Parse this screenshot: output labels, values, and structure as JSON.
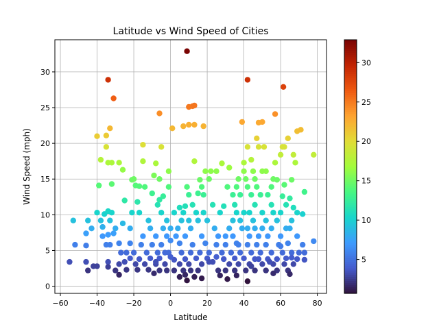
{
  "chart_data": {
    "type": "scatter",
    "title": "Latitude vs Wind Speed of Cities",
    "xlabel": "Latitude",
    "ylabel": "Wind Speed (mph)",
    "xlim": [
      -63,
      85
    ],
    "ylim": [
      -1.0,
      34.5
    ],
    "xticks": [
      -60,
      -40,
      -20,
      0,
      20,
      40,
      60,
      80
    ],
    "yticks": [
      0,
      5,
      10,
      15,
      20,
      25,
      30
    ],
    "grid": true,
    "colormap": "turbo",
    "color_value": "wind speed (mph)",
    "colorbar": {
      "min": 0.7,
      "max": 32.9,
      "ticks": [
        5,
        10,
        15,
        20,
        25,
        30
      ]
    },
    "points": [
      [
        9.0,
        32.9
      ],
      [
        -34.0,
        28.9
      ],
      [
        42.0,
        28.9
      ],
      [
        61.5,
        27.9
      ],
      [
        -31.0,
        26.3
      ],
      [
        10.0,
        25.1
      ],
      [
        12.0,
        25.2
      ],
      [
        13.0,
        25.3
      ],
      [
        -6.0,
        24.2
      ],
      [
        57.0,
        24.1
      ],
      [
        7.0,
        22.4
      ],
      [
        10.0,
        22.6
      ],
      [
        13.0,
        22.6
      ],
      [
        18.0,
        22.4
      ],
      [
        39.0,
        23.0
      ],
      [
        48.0,
        22.9
      ],
      [
        50.0,
        23.0
      ],
      [
        -33.0,
        22.1
      ],
      [
        -40.0,
        21.0
      ],
      [
        -35.0,
        21.1
      ],
      [
        64.0,
        20.7
      ],
      [
        69.0,
        21.7
      ],
      [
        71.0,
        21.9
      ],
      [
        47.0,
        20.7
      ],
      [
        -35.0,
        19.5
      ],
      [
        -15.0,
        19.8
      ],
      [
        -5.0,
        19.5
      ],
      [
        1.0,
        22.1
      ],
      [
        42.0,
        19.5
      ],
      [
        48.0,
        19.5
      ],
      [
        51.0,
        19.5
      ],
      [
        61.0,
        19.5
      ],
      [
        62.0,
        19.5
      ],
      [
        60.0,
        18.4
      ],
      [
        67.0,
        18.4
      ],
      [
        78.0,
        18.4
      ],
      [
        -38.0,
        17.7
      ],
      [
        -34.0,
        17.3
      ],
      [
        -28.0,
        17.3
      ],
      [
        -15.0,
        17.5
      ],
      [
        -8.0,
        17.2
      ],
      [
        13.0,
        17.5
      ],
      [
        28.0,
        17.2
      ],
      [
        32.0,
        16.6
      ],
      [
        40.0,
        17.3
      ],
      [
        44.0,
        17.7
      ],
      [
        57.0,
        17.3
      ],
      [
        68.0,
        17.3
      ],
      [
        -32.0,
        17.3
      ],
      [
        -26.0,
        16.3
      ],
      [
        -1.0,
        16.1
      ],
      [
        19.0,
        16.1
      ],
      [
        22.0,
        16.1
      ],
      [
        25.0,
        16.1
      ],
      [
        40.0,
        16.1
      ],
      [
        45.0,
        16.1
      ],
      [
        50.0,
        16.1
      ],
      [
        52.0,
        16.1
      ],
      [
        -21.0,
        14.9
      ],
      [
        -20.0,
        15.0
      ],
      [
        -9.0,
        15.5
      ],
      [
        -6.0,
        15.0
      ],
      [
        16.0,
        14.9
      ],
      [
        21.0,
        15.0
      ],
      [
        37.0,
        15.0
      ],
      [
        41.0,
        15.0
      ],
      [
        46.0,
        15.0
      ],
      [
        56.0,
        15.0
      ],
      [
        58.0,
        14.9
      ],
      [
        66.0,
        14.9
      ],
      [
        -39.0,
        14.1
      ],
      [
        -32.0,
        14.3
      ],
      [
        -19.0,
        14.1
      ],
      [
        -17.0,
        14.0
      ],
      [
        -14.0,
        13.9
      ],
      [
        -1.0,
        13.9
      ],
      [
        9.0,
        13.9
      ],
      [
        17.0,
        13.9
      ],
      [
        31.0,
        13.9
      ],
      [
        36.0,
        13.9
      ],
      [
        42.0,
        13.9
      ],
      [
        47.0,
        13.9
      ],
      [
        55.0,
        13.9
      ],
      [
        62.0,
        14.2
      ],
      [
        73.0,
        13.2
      ],
      [
        -10.0,
        13.0
      ],
      [
        -6.0,
        12.1
      ],
      [
        -4.0,
        12.6
      ],
      [
        5.0,
        11.0
      ],
      [
        10.0,
        12.8
      ],
      [
        15.0,
        13.0
      ],
      [
        18.0,
        12.8
      ],
      [
        34.0,
        12.8
      ],
      [
        38.0,
        12.8
      ],
      [
        44.0,
        12.8
      ],
      [
        49.0,
        12.8
      ],
      [
        53.0,
        12.8
      ],
      [
        61.0,
        12.6
      ],
      [
        65.0,
        12.3
      ],
      [
        -25.0,
        12.0
      ],
      [
        -18.0,
        11.8
      ],
      [
        -7.0,
        11.4
      ],
      [
        8.0,
        11.2
      ],
      [
        12.0,
        11.4
      ],
      [
        23.0,
        11.4
      ],
      [
        29.0,
        11.2
      ],
      [
        35.0,
        11.4
      ],
      [
        46.0,
        11.4
      ],
      [
        55.0,
        11.4
      ],
      [
        63.0,
        11.4
      ],
      [
        67.0,
        11.0
      ],
      [
        -40.0,
        10.3
      ],
      [
        -36.0,
        10.1
      ],
      [
        -34.0,
        10.5
      ],
      [
        -32.0,
        10.3
      ],
      [
        -21.0,
        10.3
      ],
      [
        -17.0,
        10.3
      ],
      [
        -5.0,
        10.3
      ],
      [
        2.0,
        10.3
      ],
      [
        7.0,
        10.3
      ],
      [
        14.0,
        10.3
      ],
      [
        18.0,
        10.3
      ],
      [
        27.0,
        10.3
      ],
      [
        36.0,
        10.3
      ],
      [
        40.0,
        10.3
      ],
      [
        43.0,
        10.3
      ],
      [
        50.0,
        10.3
      ],
      [
        56.0,
        10.3
      ],
      [
        60.0,
        10.3
      ],
      [
        69.0,
        10.3
      ],
      [
        72.0,
        10.1
      ],
      [
        -53.0,
        9.2
      ],
      [
        -45.0,
        9.2
      ],
      [
        -38.0,
        9.2
      ],
      [
        -33.0,
        9.2
      ],
      [
        -26.0,
        8.8
      ],
      [
        -12.0,
        9.2
      ],
      [
        -2.0,
        9.2
      ],
      [
        6.0,
        9.2
      ],
      [
        10.0,
        9.2
      ],
      [
        15.0,
        9.2
      ],
      [
        20.0,
        9.2
      ],
      [
        34.0,
        9.2
      ],
      [
        38.0,
        9.2
      ],
      [
        45.0,
        9.2
      ],
      [
        52.0,
        9.2
      ],
      [
        58.0,
        9.2
      ],
      [
        66.0,
        9.2
      ],
      [
        -43.0,
        8.1
      ],
      [
        -37.0,
        8.3
      ],
      [
        -30.0,
        8.1
      ],
      [
        -22.0,
        8.1
      ],
      [
        -11.0,
        8.1
      ],
      [
        -4.0,
        8.1
      ],
      [
        0.0,
        8.1
      ],
      [
        4.0,
        8.1
      ],
      [
        11.0,
        8.1
      ],
      [
        24.0,
        8.1
      ],
      [
        32.0,
        8.1
      ],
      [
        39.0,
        8.1
      ],
      [
        42.0,
        8.1
      ],
      [
        46.0,
        8.1
      ],
      [
        50.0,
        8.1
      ],
      [
        55.0,
        8.1
      ],
      [
        63.0,
        8.1
      ],
      [
        65.0,
        8.1
      ],
      [
        -46.0,
        7.4
      ],
      [
        -37.0,
        7.0
      ],
      [
        -34.0,
        7.2
      ],
      [
        -31.0,
        7.4
      ],
      [
        -15.0,
        7.0
      ],
      [
        -8.0,
        7.0
      ],
      [
        -2.0,
        7.0
      ],
      [
        3.0,
        7.0
      ],
      [
        8.0,
        7.0
      ],
      [
        17.0,
        7.0
      ],
      [
        26.0,
        7.0
      ],
      [
        30.0,
        7.0
      ],
      [
        34.0,
        7.0
      ],
      [
        43.0,
        7.0
      ],
      [
        48.0,
        7.0
      ],
      [
        53.0,
        7.0
      ],
      [
        60.0,
        7.0
      ],
      [
        69.0,
        7.0
      ],
      [
        -52.0,
        5.8
      ],
      [
        -46.0,
        5.7
      ],
      [
        -35.0,
        5.8
      ],
      [
        -33.0,
        5.8
      ],
      [
        -28.0,
        6.0
      ],
      [
        -22.0,
        6.0
      ],
      [
        -16.0,
        5.8
      ],
      [
        -10.0,
        5.8
      ],
      [
        -5.0,
        5.8
      ],
      [
        0.0,
        6.4
      ],
      [
        5.0,
        6.0
      ],
      [
        12.0,
        5.8
      ],
      [
        19.0,
        6.0
      ],
      [
        25.0,
        5.8
      ],
      [
        30.0,
        5.8
      ],
      [
        36.0,
        6.0
      ],
      [
        42.0,
        5.8
      ],
      [
        47.0,
        5.8
      ],
      [
        52.0,
        5.8
      ],
      [
        59.0,
        5.8
      ],
      [
        64.0,
        6.0
      ],
      [
        72.0,
        5.8
      ],
      [
        78.0,
        6.3
      ],
      [
        -27.0,
        4.7
      ],
      [
        -24.0,
        4.7
      ],
      [
        -20.0,
        4.7
      ],
      [
        -13.0,
        4.7
      ],
      [
        -7.0,
        4.7
      ],
      [
        -1.0,
        4.7
      ],
      [
        6.0,
        4.7
      ],
      [
        11.0,
        4.7
      ],
      [
        16.0,
        4.7
      ],
      [
        21.0,
        4.7
      ],
      [
        28.0,
        4.7
      ],
      [
        33.0,
        4.7
      ],
      [
        38.0,
        4.7
      ],
      [
        44.0,
        4.7
      ],
      [
        49.0,
        4.7
      ],
      [
        55.0,
        4.7
      ],
      [
        61.0,
        4.7
      ],
      [
        66.0,
        4.7
      ],
      [
        70.0,
        4.7
      ],
      [
        73.0,
        4.7
      ],
      [
        -22.0,
        3.9
      ],
      [
        -17.0,
        3.8
      ],
      [
        -11.0,
        3.9
      ],
      [
        -6.0,
        3.9
      ],
      [
        2.0,
        3.7
      ],
      [
        8.0,
        3.8
      ],
      [
        14.0,
        3.9
      ],
      [
        20.0,
        3.9
      ],
      [
        29.0,
        3.8
      ],
      [
        35.0,
        3.9
      ],
      [
        40.0,
        3.9
      ],
      [
        46.0,
        3.8
      ],
      [
        53.0,
        3.8
      ],
      [
        58.0,
        3.8
      ],
      [
        63.0,
        3.9
      ],
      [
        69.0,
        3.8
      ],
      [
        73.0,
        3.7
      ],
      [
        -55.0,
        3.4
      ],
      [
        -46.0,
        3.4
      ],
      [
        -34.0,
        3.4
      ],
      [
        -28.0,
        3.1
      ],
      [
        -19.0,
        3.1
      ],
      [
        -14.0,
        3.1
      ],
      [
        -8.0,
        3.1
      ],
      [
        -3.0,
        3.1
      ],
      [
        5.0,
        3.1
      ],
      [
        10.0,
        3.1
      ],
      [
        17.0,
        3.1
      ],
      [
        23.0,
        3.4
      ],
      [
        32.0,
        3.1
      ],
      [
        37.0,
        3.1
      ],
      [
        43.0,
        3.1
      ],
      [
        50.0,
        3.1
      ],
      [
        56.0,
        3.1
      ],
      [
        62.0,
        3.1
      ],
      [
        67.0,
        3.1
      ],
      [
        -42.0,
        2.8
      ],
      [
        -40.0,
        2.8
      ],
      [
        -34.0,
        2.7
      ],
      [
        -30.0,
        2.2
      ],
      [
        -24.0,
        2.3
      ],
      [
        -18.0,
        2.3
      ],
      [
        -12.0,
        2.3
      ],
      [
        -6.0,
        2.2
      ],
      [
        -2.0,
        2.2
      ],
      [
        2.0,
        2.2
      ],
      [
        7.0,
        2.2
      ],
      [
        11.0,
        2.2
      ],
      [
        15.0,
        2.2
      ],
      [
        26.0,
        2.2
      ],
      [
        30.0,
        2.2
      ],
      [
        35.0,
        2.2
      ],
      [
        41.0,
        2.2
      ],
      [
        46.0,
        2.2
      ],
      [
        52.0,
        2.2
      ],
      [
        58.0,
        2.2
      ],
      [
        64.0,
        2.2
      ],
      [
        -45.0,
        2.2
      ],
      [
        -28.0,
        1.6
      ],
      [
        -9.0,
        1.8
      ],
      [
        5.0,
        1.3
      ],
      [
        8.0,
        1.6
      ],
      [
        13.0,
        1.3
      ],
      [
        27.0,
        1.5
      ],
      [
        36.0,
        1.5
      ],
      [
        56.0,
        1.8
      ],
      [
        65.0,
        1.7
      ],
      [
        9.0,
        0.8
      ],
      [
        31.0,
        1.0
      ],
      [
        42.0,
        0.7
      ],
      [
        17.0,
        1.1
      ],
      [
        -8.0,
        3.4
      ],
      [
        54.0,
        3.4
      ],
      [
        48.0,
        3.8
      ],
      [
        -3.0,
        4.7
      ],
      [
        21.0,
        3.4
      ],
      [
        37.0,
        5.8
      ],
      [
        0.0,
        4.1
      ],
      [
        60.0,
        5.6
      ],
      [
        25.0,
        4.1
      ],
      [
        -25.0,
        3.4
      ],
      [
        66.0,
        4.0
      ],
      [
        44.0,
        2.8
      ]
    ]
  }
}
